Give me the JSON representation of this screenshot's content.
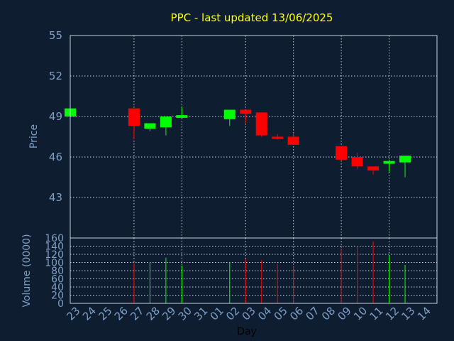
{
  "chart_data": [
    {
      "type": "candlestick",
      "title": "PPC - last updated 13/06/2025",
      "ylabel": "Price",
      "ylim": [
        40,
        55
      ],
      "yticks": [
        43,
        46,
        49,
        52,
        55
      ],
      "grid": true,
      "colors": {
        "up": "#00ff00",
        "down": "#ff0000",
        "background": "#0e1e30",
        "text": "#7f9fc6",
        "title": "#ffff00"
      },
      "categories": [
        "23",
        "24",
        "25",
        "26",
        "27",
        "28",
        "29",
        "30",
        "31",
        "01",
        "02",
        "03",
        "04",
        "05",
        "06",
        "07",
        "08",
        "09",
        "10",
        "11",
        "12",
        "13",
        "14"
      ],
      "candles": [
        {
          "day": "23",
          "open": 49.0,
          "close": 49.6,
          "high": 49.6,
          "low": 49.0
        },
        {
          "day": "27",
          "open": 49.6,
          "close": 48.3,
          "high": 49.6,
          "low": 47.3
        },
        {
          "day": "28",
          "open": 48.1,
          "close": 48.5,
          "high": 48.5,
          "low": 47.9
        },
        {
          "day": "29",
          "open": 48.2,
          "close": 49.0,
          "high": 49.0,
          "low": 47.6
        },
        {
          "day": "30",
          "open": 48.9,
          "close": 49.1,
          "high": 49.7,
          "low": 48.9
        },
        {
          "day": "02",
          "open": 48.8,
          "close": 49.5,
          "high": 49.5,
          "low": 48.3
        },
        {
          "day": "03",
          "open": 49.5,
          "close": 49.2,
          "high": 49.5,
          "low": 48.5
        },
        {
          "day": "04",
          "open": 49.3,
          "close": 47.6,
          "high": 49.3,
          "low": 47.5
        },
        {
          "day": "05",
          "open": 47.5,
          "close": 47.4,
          "high": 47.7,
          "low": 47.3
        },
        {
          "day": "06",
          "open": 47.5,
          "close": 46.9,
          "high": 47.8,
          "low": 46.9
        },
        {
          "day": "09",
          "open": 46.8,
          "close": 45.8,
          "high": 46.8,
          "low": 45.7
        },
        {
          "day": "10",
          "open": 46.0,
          "close": 45.3,
          "high": 46.3,
          "low": 45.1
        },
        {
          "day": "11",
          "open": 45.3,
          "close": 45.0,
          "high": 45.3,
          "low": 44.7
        },
        {
          "day": "12",
          "open": 45.5,
          "close": 45.7,
          "high": 45.8,
          "low": 44.9
        },
        {
          "day": "13",
          "open": 45.6,
          "close": 46.1,
          "high": 46.1,
          "low": 44.5
        }
      ]
    },
    {
      "type": "bar",
      "ylabel": "Volume (0000)",
      "xlabel": "Day",
      "ylim": [
        0,
        160
      ],
      "yticks": [
        0,
        20,
        40,
        60,
        80,
        100,
        120,
        140,
        160
      ],
      "grid": true,
      "categories": [
        "23",
        "24",
        "25",
        "26",
        "27",
        "28",
        "29",
        "30",
        "31",
        "01",
        "02",
        "03",
        "04",
        "05",
        "06",
        "07",
        "08",
        "09",
        "10",
        "11",
        "12",
        "13",
        "14"
      ],
      "bars": [
        {
          "day": "27",
          "value": 98,
          "direction": "down"
        },
        {
          "day": "28",
          "value": 100,
          "direction": "up"
        },
        {
          "day": "29",
          "value": 112,
          "direction": "up"
        },
        {
          "day": "30",
          "value": 93,
          "direction": "up"
        },
        {
          "day": "02",
          "value": 100,
          "direction": "up"
        },
        {
          "day": "03",
          "value": 108,
          "direction": "down"
        },
        {
          "day": "04",
          "value": 106,
          "direction": "down"
        },
        {
          "day": "05",
          "value": 97,
          "direction": "down"
        },
        {
          "day": "06",
          "value": 92,
          "direction": "down"
        },
        {
          "day": "09",
          "value": 134,
          "direction": "down"
        },
        {
          "day": "10",
          "value": 140,
          "direction": "down"
        },
        {
          "day": "11",
          "value": 152,
          "direction": "down"
        },
        {
          "day": "12",
          "value": 116,
          "direction": "up"
        },
        {
          "day": "13",
          "value": 94,
          "direction": "up"
        }
      ]
    }
  ]
}
